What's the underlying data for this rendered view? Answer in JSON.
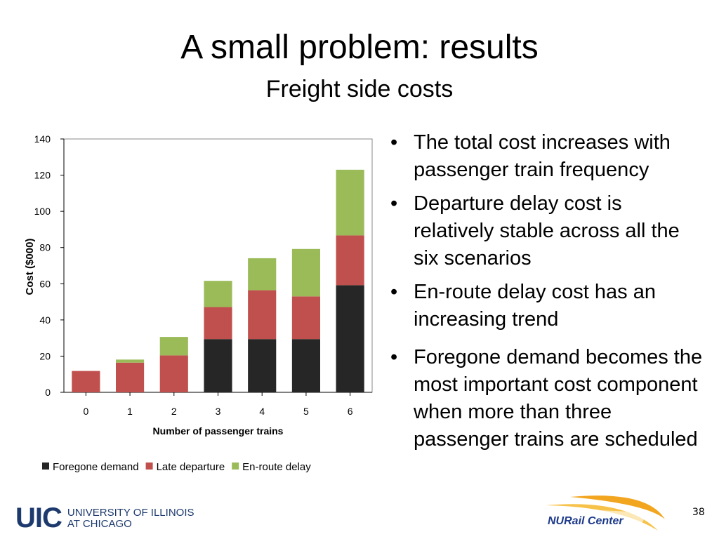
{
  "slide": {
    "title": "A small problem: results",
    "subtitle": "Freight side costs",
    "page_number": "38",
    "bullets": [
      "The total cost increases with passenger train frequency",
      "Departure delay cost is relatively stable across all the six scenarios",
      "En-route delay cost has an increasing trend",
      "Foregone demand becomes the most important cost component when more than three passenger trains are scheduled"
    ],
    "logos": {
      "uic_mark": "UIC",
      "uic_text_1": "UNIVERSITY OF ILLINOIS",
      "uic_text_2": "AT CHICAGO",
      "nurail": "NURail Center"
    }
  },
  "chart_data": {
    "type": "bar",
    "stacked": true,
    "title": "",
    "xlabel": "Number of passenger trains",
    "ylabel": "Cost ($000)",
    "categories": [
      "0",
      "1",
      "2",
      "3",
      "4",
      "5",
      "6"
    ],
    "ylim": [
      0,
      140
    ],
    "yticks": [
      0,
      20,
      40,
      60,
      80,
      100,
      120,
      140
    ],
    "grid": false,
    "legend": "bottom",
    "series": [
      {
        "name": "Foregone demand",
        "color": "#262626",
        "values": [
          0,
          0,
          0,
          29.4,
          29.4,
          29.4,
          59.2
        ]
      },
      {
        "name": "Late departure",
        "color": "#c0504d",
        "values": [
          11.8,
          16.4,
          20.4,
          17.7,
          27.0,
          23.6,
          27.5
        ]
      },
      {
        "name": "En-route delay",
        "color": "#9bbb59",
        "values": [
          0,
          1.7,
          10.2,
          14.5,
          17.7,
          26.2,
          36.3
        ]
      }
    ]
  }
}
